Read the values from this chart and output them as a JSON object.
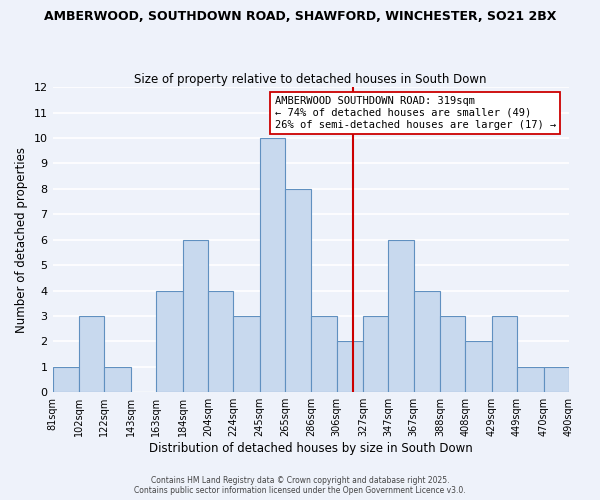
{
  "title1": "AMBERWOOD, SOUTHDOWN ROAD, SHAWFORD, WINCHESTER, SO21 2BX",
  "title2": "Size of property relative to detached houses in South Down",
  "xlabel": "Distribution of detached houses by size in South Down",
  "ylabel": "Number of detached properties",
  "bar_color": "#c8d9ee",
  "bar_edge_color": "#6090c0",
  "background_color": "#eef2fa",
  "grid_color": "#ffffff",
  "bin_edges": [
    81,
    102,
    122,
    143,
    163,
    184,
    204,
    224,
    245,
    265,
    286,
    306,
    327,
    347,
    367,
    388,
    408,
    429,
    449,
    470,
    490
  ],
  "bin_labels": [
    "81sqm",
    "102sqm",
    "122sqm",
    "143sqm",
    "163sqm",
    "184sqm",
    "204sqm",
    "224sqm",
    "245sqm",
    "265sqm",
    "286sqm",
    "306sqm",
    "327sqm",
    "347sqm",
    "367sqm",
    "388sqm",
    "408sqm",
    "429sqm",
    "449sqm",
    "470sqm",
    "490sqm"
  ],
  "bar_counts": [
    1,
    3,
    1,
    0,
    4,
    6,
    4,
    3,
    10,
    8,
    3,
    2,
    3,
    6,
    4,
    3,
    2,
    3,
    1,
    1
  ],
  "ylim": [
    0,
    12
  ],
  "yticks": [
    0,
    1,
    2,
    3,
    4,
    5,
    6,
    7,
    8,
    9,
    10,
    11,
    12
  ],
  "property_value": 319,
  "vline_color": "#cc0000",
  "annotation_title": "AMBERWOOD SOUTHDOWN ROAD: 319sqm",
  "annotation_line1": "← 74% of detached houses are smaller (49)",
  "annotation_line2": "26% of semi-detached houses are larger (17) →",
  "annotation_box_color": "#ffffff",
  "annotation_box_edge": "#cc0000",
  "footer1": "Contains HM Land Registry data © Crown copyright and database right 2025.",
  "footer2": "Contains public sector information licensed under the Open Government Licence v3.0."
}
